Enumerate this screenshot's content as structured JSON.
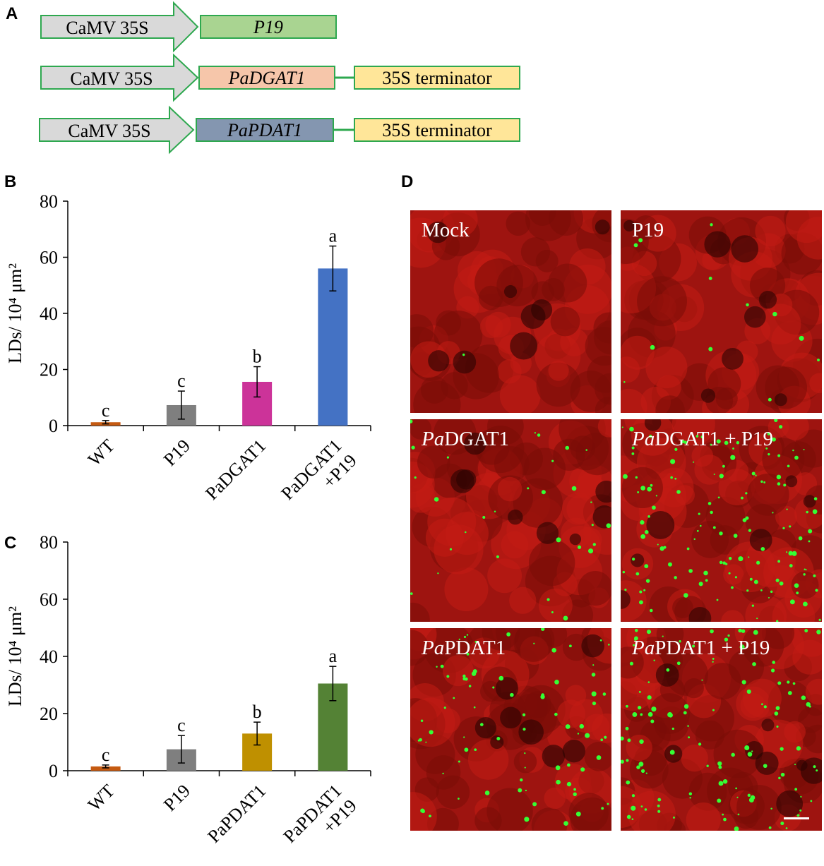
{
  "panels": {
    "a": "A",
    "b": "B",
    "c": "C",
    "d": "D"
  },
  "constructs": [
    {
      "promoter": "CaMV 35S",
      "gene": "P19",
      "terminator": "",
      "gene_color": "#a9d491"
    },
    {
      "promoter": "CaMV 35S",
      "gene": "PaDGAT1",
      "terminator": "35S terminator",
      "gene_color": "#f6c6aa"
    },
    {
      "promoter": "CaMV 35S",
      "gene": "PaPDAT1",
      "terminator": "35S terminator",
      "gene_color": "#8496b0"
    }
  ],
  "chart_data": [
    {
      "type": "bar",
      "panel": "B",
      "ylabel": "LDs/ 10⁴ μm²",
      "ylim": [
        0,
        80
      ],
      "yticks": [
        0,
        20,
        40,
        60,
        80
      ],
      "categories": [
        "WT",
        "P19",
        "PaDGAT1",
        "PaDGAT1 +P19"
      ],
      "values": [
        1.2,
        7.3,
        15.6,
        56.0
      ],
      "errors": [
        0.6,
        5.0,
        5.4,
        8.0
      ],
      "letters": [
        "c",
        "c",
        "b",
        "a"
      ],
      "colors": [
        "#c55a11",
        "#7f7f7f",
        "#cc3399",
        "#4472c4"
      ]
    },
    {
      "type": "bar",
      "panel": "C",
      "ylabel": "LDs/ 10⁴ μm²",
      "ylim": [
        0,
        80
      ],
      "yticks": [
        0,
        20,
        40,
        60,
        80
      ],
      "categories": [
        "WT",
        "P19",
        "PaPDAT1",
        "PaPDAT1 +P19"
      ],
      "values": [
        1.5,
        7.5,
        13.0,
        30.5
      ],
      "errors": [
        0.5,
        4.8,
        4.0,
        6.0
      ],
      "letters": [
        "c",
        "c",
        "b",
        "a"
      ],
      "colors": [
        "#c55a11",
        "#7f7f7f",
        "#bf9000",
        "#548235"
      ]
    }
  ],
  "micrographs": [
    {
      "label_italic": "",
      "label": "Mock"
    },
    {
      "label_italic": "",
      "label": "P19"
    },
    {
      "label_italic": "Pa",
      "label": "DGAT1"
    },
    {
      "label_italic": "Pa",
      "label": "DGAT1 + P19"
    },
    {
      "label_italic": "Pa",
      "label": "PDAT1"
    },
    {
      "label_italic": "Pa",
      "label": "PDAT1 + P19"
    }
  ]
}
